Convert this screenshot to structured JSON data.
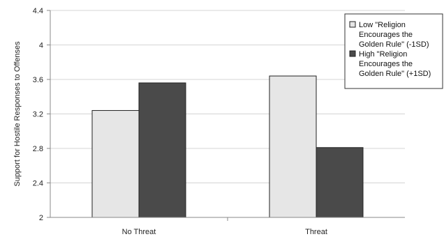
{
  "chart_data": {
    "type": "bar",
    "title": "",
    "xlabel": "",
    "ylabel": "Support for Hostile Responses to Offenses",
    "categories": [
      "No Threat",
      "Threat"
    ],
    "ylim": [
      2,
      4.4
    ],
    "yticks": [
      "2",
      "2.4",
      "2.8",
      "3.2",
      "3.6",
      "4",
      "4.4"
    ],
    "grid": true,
    "legend_position": "top-right",
    "series": [
      {
        "name": "Low \"Religion Encourages the Golden Rule\" (-1SD)",
        "legend_lines": [
          "Low \"Religion",
          "Encourages the",
          "Golden Rule\" (-1SD)"
        ],
        "color": "#e6e6e6",
        "values": [
          3.24,
          3.64
        ]
      },
      {
        "name": "High \"Religion Encourages the Golden Rule\" (+1SD)",
        "legend_lines": [
          "High \"Religion",
          "Encourages the",
          "Golden Rule\" (+1SD)"
        ],
        "color": "#4a4a4a",
        "values": [
          3.56,
          2.81
        ]
      }
    ]
  }
}
